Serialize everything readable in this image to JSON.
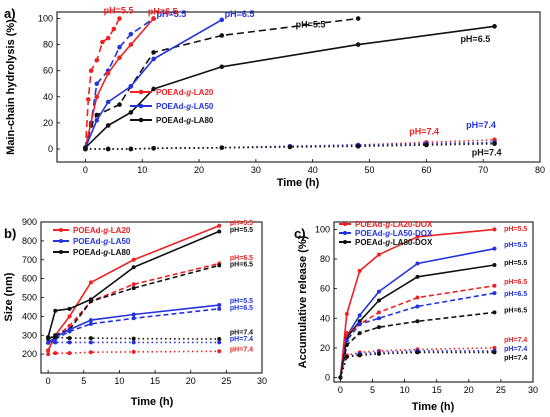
{
  "chart_data": [
    {
      "panel": "a)",
      "type": "line",
      "xlabel": "Time (h)",
      "ylabel": "Main-chain hydrolysis (%)",
      "xlim": [
        -5,
        80
      ],
      "ylim": [
        -10,
        105
      ],
      "xticks": [
        "0",
        "10",
        "20",
        "30",
        "40",
        "50",
        "60",
        "70",
        "80"
      ],
      "yticks": [
        "0",
        "20",
        "40",
        "60",
        "80",
        "100"
      ],
      "legend": {
        "placement": "middle-left",
        "entries": [
          {
            "parts": [
              "POEAd-",
              "g",
              "-LA20"
            ],
            "color": "#ee2222"
          },
          {
            "parts": [
              "POEAd-",
              "g",
              "-LA50"
            ],
            "color": "#2233dd"
          },
          {
            "parts": [
              "POEAd-",
              "g",
              "-LA80"
            ],
            "color": "#111111"
          }
        ]
      },
      "series": [
        {
          "name": "POEAd-g-LA20",
          "condition": "pH=5.5",
          "color": "#ee2222",
          "dash": "long",
          "x": [
            0,
            0.5,
            1,
            2,
            3,
            4,
            5,
            6
          ],
          "y": [
            0,
            38,
            60,
            68,
            82,
            85,
            92,
            100
          ]
        },
        {
          "name": "POEAd-g-LA50",
          "condition": "pH=5.5",
          "color": "#2233dd",
          "dash": "long",
          "x": [
            0,
            1,
            2,
            4,
            6,
            8,
            12
          ],
          "y": [
            0,
            20,
            50,
            60,
            78,
            88,
            100
          ]
        },
        {
          "name": "POEAd-g-LA80",
          "condition": "pH=5.5",
          "color": "#111111",
          "dash": "long",
          "x": [
            0,
            1,
            2,
            6,
            8,
            12,
            24,
            48
          ],
          "y": [
            0,
            18,
            26,
            34,
            48,
            74,
            87,
            100
          ]
        },
        {
          "name": "POEAd-g-LA20",
          "condition": "pH=6.5",
          "color": "#ee2222",
          "dash": "solid",
          "x": [
            0,
            2,
            4,
            6,
            8,
            12
          ],
          "y": [
            1,
            40,
            58,
            70,
            80,
            100
          ]
        },
        {
          "name": "POEAd-g-LA50",
          "condition": "pH=6.5",
          "color": "#2233dd",
          "dash": "solid",
          "x": [
            0,
            2,
            4,
            8,
            12,
            24
          ],
          "y": [
            1,
            22,
            36,
            48,
            69,
            99
          ]
        },
        {
          "name": "POEAd-g-LA80",
          "condition": "pH=6.5",
          "color": "#111111",
          "dash": "solid",
          "x": [
            0,
            4,
            8,
            12,
            24,
            48,
            72
          ],
          "y": [
            1,
            18,
            28,
            46,
            63,
            80,
            94
          ]
        },
        {
          "name": "POEAd-g-LA20",
          "condition": "pH=7.4",
          "color": "#ee2222",
          "dash": "dot",
          "x": [
            0,
            4,
            8,
            12,
            24,
            36,
            48,
            60,
            72
          ],
          "y": [
            0,
            0,
            0,
            0.5,
            1,
            2,
            3,
            5,
            7
          ]
        },
        {
          "name": "POEAd-g-LA50",
          "condition": "pH=7.4",
          "color": "#2233dd",
          "dash": "dot",
          "x": [
            0,
            4,
            8,
            12,
            24,
            36,
            48,
            60,
            72
          ],
          "y": [
            0,
            0,
            0,
            0.5,
            1,
            2,
            3,
            4,
            5
          ]
        },
        {
          "name": "POEAd-g-LA80",
          "condition": "pH=7.4",
          "color": "#111111",
          "dash": "dot",
          "x": [
            0,
            4,
            8,
            12,
            24,
            36,
            48,
            60,
            72
          ],
          "y": [
            0,
            0,
            0,
            0.5,
            1,
            1.5,
            2,
            3,
            4
          ]
        }
      ],
      "annotations": [
        {
          "text": "pH=5.5",
          "color": "#ee2222",
          "x": 3.2,
          "y": 104
        },
        {
          "text": "pH=5.5",
          "color": "#2233dd",
          "x": 12.5,
          "y": 101
        },
        {
          "text": "pH=5.5",
          "color": "#111111",
          "x": 37,
          "y": 93
        },
        {
          "text": "pH=6.5",
          "color": "#ee2222",
          "x": 11,
          "y": 103
        },
        {
          "text": "pH=6.5",
          "color": "#2233dd",
          "x": 24.5,
          "y": 101
        },
        {
          "text": "pH=6.5",
          "color": "#111111",
          "x": 66,
          "y": 82
        },
        {
          "text": "pH=7.4",
          "color": "#ee2222",
          "x": 57,
          "y": 11
        },
        {
          "text": "pH=7.4",
          "color": "#2233dd",
          "x": 67,
          "y": 16
        },
        {
          "text": "pH=7.4",
          "color": "#111111",
          "x": 68,
          "y": -5
        }
      ]
    },
    {
      "panel": "b)",
      "type": "line",
      "xlabel": "Time (h)",
      "ylabel": "Size (nm)",
      "xlim": [
        -1,
        30
      ],
      "ylim": [
        100,
        900
      ],
      "xticks": [
        "0",
        "5",
        "10",
        "15",
        "20",
        "25",
        "30"
      ],
      "yticks": [
        "200",
        "300",
        "400",
        "500",
        "600",
        "700",
        "800",
        "900"
      ],
      "legend": {
        "placement": "top-left",
        "entries": [
          {
            "parts": [
              "POEAd-",
              "g",
              "-LA20"
            ],
            "color": "#ee2222"
          },
          {
            "parts": [
              "POEAd-",
              "g",
              "-LA50"
            ],
            "color": "#2233dd"
          },
          {
            "parts": [
              "POEAd-",
              "g",
              "-LA80"
            ],
            "color": "#111111"
          }
        ]
      },
      "series": [
        {
          "name": "POEAd-g-LA20",
          "condition": "pH=5.5",
          "color": "#ee2222",
          "dash": "solid",
          "x": [
            0,
            1,
            3,
            6,
            12,
            24
          ],
          "y": [
            220,
            300,
            400,
            580,
            700,
            880
          ]
        },
        {
          "name": "POEAd-g-LA80",
          "condition": "pH=5.5",
          "color": "#111111",
          "dash": "solid",
          "x": [
            0,
            1,
            3,
            6,
            12,
            24
          ],
          "y": [
            290,
            430,
            440,
            490,
            660,
            850
          ]
        },
        {
          "name": "POEAd-g-LA20",
          "condition": "pH=6.5",
          "color": "#ee2222",
          "dash": "dash",
          "x": [
            0,
            1,
            3,
            6,
            12,
            24
          ],
          "y": [
            220,
            290,
            350,
            480,
            570,
            680
          ]
        },
        {
          "name": "POEAd-g-LA80",
          "condition": "pH=6.5",
          "color": "#111111",
          "dash": "dash",
          "x": [
            0,
            1,
            3,
            6,
            12,
            24
          ],
          "y": [
            280,
            300,
            330,
            480,
            550,
            670
          ]
        },
        {
          "name": "POEAd-g-LA50",
          "condition": "pH=5.5",
          "color": "#2233dd",
          "dash": "solid",
          "x": [
            0,
            1,
            3,
            6,
            12,
            24
          ],
          "y": [
            260,
            290,
            330,
            380,
            410,
            460
          ]
        },
        {
          "name": "POEAd-g-LA50",
          "condition": "pH=6.5",
          "color": "#2233dd",
          "dash": "dash",
          "x": [
            0,
            1,
            3,
            6,
            12,
            24
          ],
          "y": [
            260,
            280,
            320,
            360,
            390,
            440
          ]
        },
        {
          "name": "POEAd-g-LA80",
          "condition": "pH=7.4",
          "color": "#111111",
          "dash": "dot",
          "x": [
            0,
            1,
            3,
            6,
            12,
            24
          ],
          "y": [
            290,
            290,
            285,
            285,
            282,
            280
          ]
        },
        {
          "name": "POEAd-g-LA50",
          "condition": "pH=7.4",
          "color": "#2233dd",
          "dash": "dot",
          "x": [
            0,
            1,
            3,
            6,
            12,
            24
          ],
          "y": [
            260,
            262,
            262,
            262,
            262,
            262
          ]
        },
        {
          "name": "POEAd-g-LA20",
          "condition": "pH=7.4",
          "color": "#ee2222",
          "dash": "dot",
          "x": [
            0,
            1,
            3,
            6,
            12,
            24
          ],
          "y": [
            200,
            205,
            205,
            210,
            212,
            215
          ]
        }
      ],
      "annotations": [
        {
          "text": "pH=5.5",
          "color": "#ee2222",
          "x": 25.5,
          "y": 885
        },
        {
          "text": "pH=5.5",
          "color": "#111111",
          "x": 25.5,
          "y": 848
        },
        {
          "text": "pH=6.5",
          "color": "#ee2222",
          "x": 25.5,
          "y": 700
        },
        {
          "text": "pH=6.5",
          "color": "#111111",
          "x": 25.5,
          "y": 665
        },
        {
          "text": "pH=5.5",
          "color": "#2233dd",
          "x": 25.5,
          "y": 470
        },
        {
          "text": "pH=6.5",
          "color": "#2233dd",
          "x": 25.5,
          "y": 435
        },
        {
          "text": "pH=7.4",
          "color": "#111111",
          "x": 25.5,
          "y": 305
        },
        {
          "text": "pH=7.4",
          "color": "#2233dd",
          "x": 25.5,
          "y": 270
        },
        {
          "text": "pH=7.4",
          "color": "#ee2222",
          "x": 25.5,
          "y": 215
        }
      ]
    },
    {
      "panel": "c)",
      "type": "line",
      "xlabel": "Time (h)",
      "ylabel": "Accumulative release (%)",
      "xlim": [
        -1,
        30
      ],
      "ylim": [
        -3,
        105
      ],
      "xticks": [
        "0",
        "5",
        "10",
        "15",
        "20",
        "25",
        "30"
      ],
      "yticks": [
        "0",
        "20",
        "40",
        "60",
        "80",
        "100"
      ],
      "legend": {
        "placement": "top-left",
        "entries": [
          {
            "parts": [
              "POEAd-",
              "g",
              "-LA20-DOX"
            ],
            "color": "#ee2222"
          },
          {
            "parts": [
              "POEAd-",
              "g",
              "-LA50-DOX"
            ],
            "color": "#2233dd"
          },
          {
            "parts": [
              "POEAd-",
              "g",
              "-LA80-DOX"
            ],
            "color": "#111111"
          }
        ]
      },
      "series": [
        {
          "name": "POEAd-g-LA20-DOX",
          "condition": "pH=5.5",
          "color": "#ee2222",
          "dash": "solid",
          "x": [
            0,
            1,
            3,
            6,
            12,
            24
          ],
          "y": [
            0,
            43,
            72,
            83,
            95,
            100
          ]
        },
        {
          "name": "POEAd-g-LA50-DOX",
          "condition": "pH=5.5",
          "color": "#2233dd",
          "dash": "solid",
          "x": [
            0,
            1,
            3,
            6,
            12,
            24
          ],
          "y": [
            0,
            28,
            42,
            58,
            77,
            87
          ]
        },
        {
          "name": "POEAd-g-LA80-DOX",
          "condition": "pH=5.5",
          "color": "#111111",
          "dash": "solid",
          "x": [
            0,
            1,
            3,
            6,
            12,
            24
          ],
          "y": [
            0,
            27,
            38,
            52,
            68,
            76
          ]
        },
        {
          "name": "POEAd-g-LA20-DOX",
          "condition": "pH=6.5",
          "color": "#ee2222",
          "dash": "dash",
          "x": [
            0,
            1,
            3,
            6,
            12,
            24
          ],
          "y": [
            0,
            30,
            36,
            44,
            54,
            62
          ]
        },
        {
          "name": "POEAd-g-LA50-DOX",
          "condition": "pH=6.5",
          "color": "#2233dd",
          "dash": "dash",
          "x": [
            0,
            1,
            3,
            6,
            12,
            24
          ],
          "y": [
            0,
            25,
            36,
            40,
            48,
            57
          ]
        },
        {
          "name": "POEAd-g-LA80-DOX",
          "condition": "pH=6.5",
          "color": "#111111",
          "dash": "dash",
          "x": [
            0,
            1,
            3,
            6,
            12,
            24
          ],
          "y": [
            0,
            22,
            30,
            34,
            38,
            44
          ]
        },
        {
          "name": "POEAd-g-LA20-DOX",
          "condition": "pH=7.4",
          "color": "#ee2222",
          "dash": "dot",
          "x": [
            0,
            1,
            3,
            6,
            12,
            24
          ],
          "y": [
            0,
            15,
            17,
            18,
            19,
            20
          ]
        },
        {
          "name": "POEAd-g-LA50-DOX",
          "condition": "pH=7.4",
          "color": "#2233dd",
          "dash": "dot",
          "x": [
            0,
            1,
            3,
            6,
            12,
            24
          ],
          "y": [
            0,
            14,
            16,
            17,
            18,
            18
          ]
        },
        {
          "name": "POEAd-g-LA80-DOX",
          "condition": "pH=7.4",
          "color": "#111111",
          "dash": "dot",
          "x": [
            0,
            1,
            3,
            6,
            12,
            24
          ],
          "y": [
            0,
            14,
            15,
            16,
            17,
            17
          ]
        }
      ],
      "annotations": [
        {
          "text": "pH=5.5",
          "color": "#ee2222",
          "x": 25.5,
          "y": 99
        },
        {
          "text": "pH=5.5",
          "color": "#2233dd",
          "x": 25.5,
          "y": 88
        },
        {
          "text": "pH=5.5",
          "color": "#111111",
          "x": 25.5,
          "y": 76
        },
        {
          "text": "pH=6.5",
          "color": "#ee2222",
          "x": 25.5,
          "y": 63
        },
        {
          "text": "pH=6.5",
          "color": "#2233dd",
          "x": 25.5,
          "y": 55
        },
        {
          "text": "pH=6.5",
          "color": "#111111",
          "x": 25.5,
          "y": 44
        },
        {
          "text": "pH=7.4",
          "color": "#ee2222",
          "x": 25.5,
          "y": 24
        },
        {
          "text": "pH=7.4",
          "color": "#2233dd",
          "x": 25.5,
          "y": 18
        },
        {
          "text": "pH=7.4",
          "color": "#111111",
          "x": 25.5,
          "y": 12
        }
      ]
    }
  ]
}
